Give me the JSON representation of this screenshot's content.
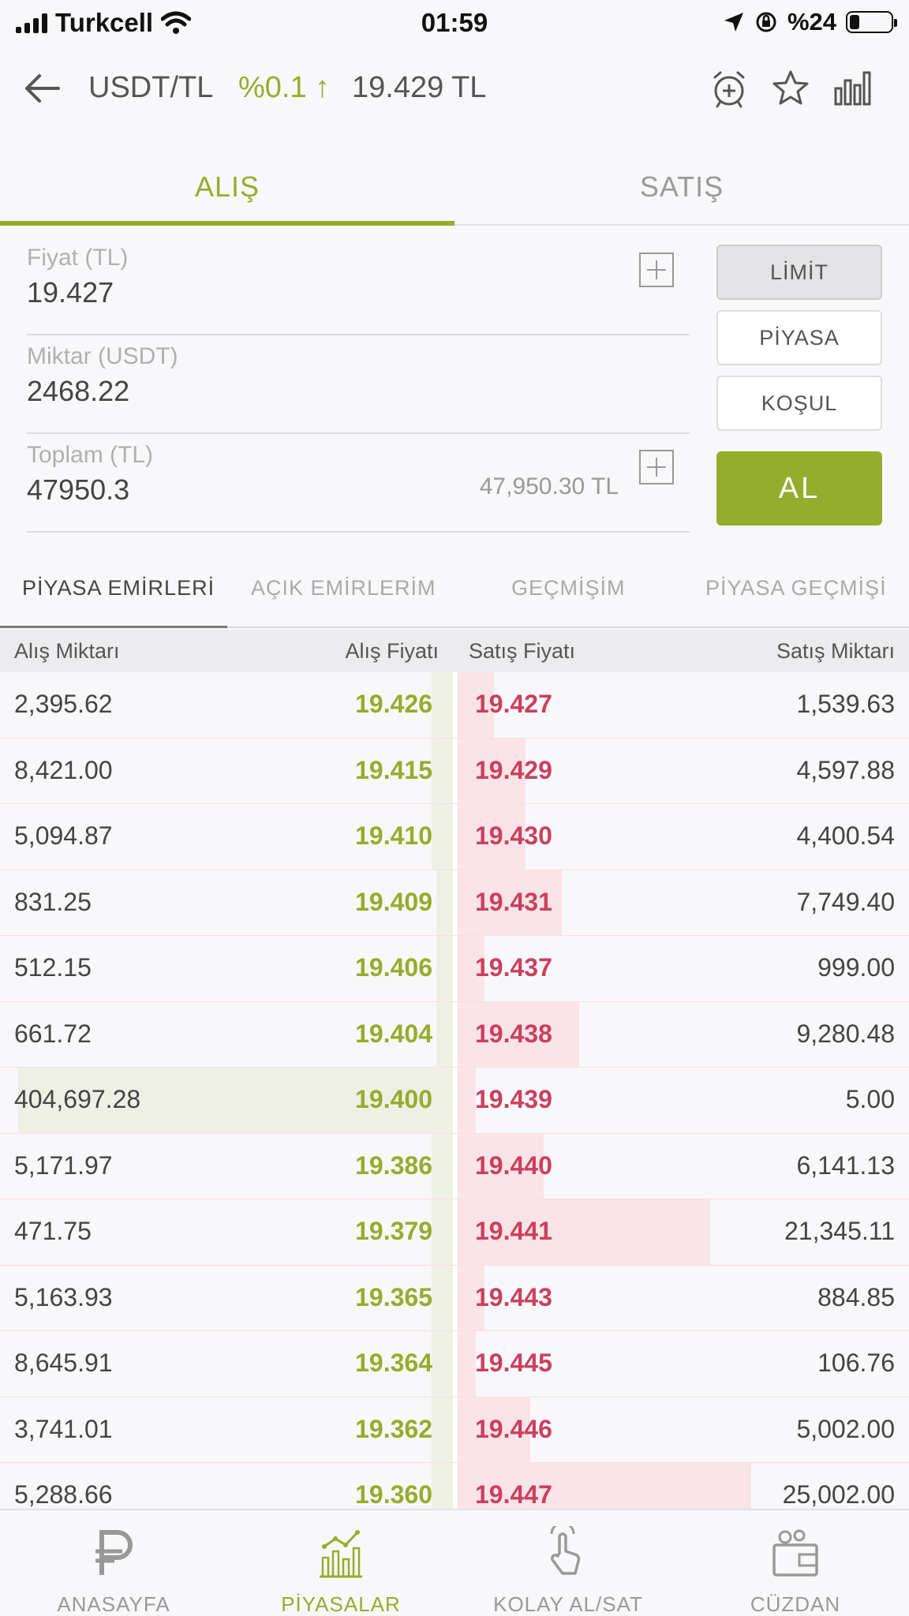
{
  "status_bar": {
    "carrier": "Turkcell",
    "time": "01:59",
    "battery_text": "%24"
  },
  "header": {
    "pair": "USDT/TL",
    "change": "%0.1 ↑",
    "price": "19.429 TL"
  },
  "tabs": [
    {
      "label": "ALIŞ",
      "active": true
    },
    {
      "label": "SATIŞ",
      "active": false
    }
  ],
  "form": {
    "price_label": "Fiyat (TL)",
    "price_value": "19.427",
    "amount_label": "Miktar (USDT)",
    "amount_value": "2468.22",
    "total_label": "Toplam (TL)",
    "total_value": "47950.3",
    "total_display": "47,950.30 TL"
  },
  "order_types": [
    "LİMİT",
    "PİYASA",
    "KOŞUL"
  ],
  "submit_label": "AL",
  "sub_tabs": [
    "PİYASA EMİRLERİ",
    "AÇIK EMİRLERİM",
    "GEÇMİŞİM",
    "PİYASA GEÇMİŞİ"
  ],
  "order_book": {
    "columns": [
      "Alış Miktarı",
      "Alış Fiyatı",
      "Satış Fiyatı",
      "Satış Miktarı"
    ],
    "rows": [
      {
        "buy_qty": "2,395.62",
        "buy_price": "19.426",
        "sell_price": "19.427",
        "sell_qty": "1,539.63",
        "buy_depth": 0.05,
        "sell_depth": 0.08
      },
      {
        "buy_qty": "8,421.00",
        "buy_price": "19.415",
        "sell_price": "19.429",
        "sell_qty": "4,597.88",
        "buy_depth": 0.05,
        "sell_depth": 0.15
      },
      {
        "buy_qty": "5,094.87",
        "buy_price": "19.410",
        "sell_price": "19.430",
        "sell_qty": "4,400.54",
        "buy_depth": 0.05,
        "sell_depth": 0.15
      },
      {
        "buy_qty": "831.25",
        "buy_price": "19.409",
        "sell_price": "19.431",
        "sell_qty": "7,749.40",
        "buy_depth": 0.04,
        "sell_depth": 0.23
      },
      {
        "buy_qty": "512.15",
        "buy_price": "19.406",
        "sell_price": "19.437",
        "sell_qty": "999.00",
        "buy_depth": 0.04,
        "sell_depth": 0.06
      },
      {
        "buy_qty": "661.72",
        "buy_price": "19.404",
        "sell_price": "19.438",
        "sell_qty": "9,280.48",
        "buy_depth": 0.04,
        "sell_depth": 0.27
      },
      {
        "buy_qty": "404,697.28",
        "buy_price": "19.400",
        "sell_price": "19.439",
        "sell_qty": "5.00",
        "buy_depth": 0.96,
        "sell_depth": 0.04
      },
      {
        "buy_qty": "5,171.97",
        "buy_price": "19.386",
        "sell_price": "19.440",
        "sell_qty": "6,141.13",
        "buy_depth": 0.05,
        "sell_depth": 0.19
      },
      {
        "buy_qty": "471.75",
        "buy_price": "19.379",
        "sell_price": "19.441",
        "sell_qty": "21,345.11",
        "buy_depth": 0.05,
        "sell_depth": 0.56
      },
      {
        "buy_qty": "5,163.93",
        "buy_price": "19.365",
        "sell_price": "19.443",
        "sell_qty": "884.85",
        "buy_depth": 0.05,
        "sell_depth": 0.06
      },
      {
        "buy_qty": "8,645.91",
        "buy_price": "19.364",
        "sell_price": "19.445",
        "sell_qty": "106.76",
        "buy_depth": 0.05,
        "sell_depth": 0.04
      },
      {
        "buy_qty": "3,741.01",
        "buy_price": "19.362",
        "sell_price": "19.446",
        "sell_qty": "5,002.00",
        "buy_depth": 0.05,
        "sell_depth": 0.16
      },
      {
        "buy_qty": "5,288.66",
        "buy_price": "19.360",
        "sell_price": "19.447",
        "sell_qty": "25,002.00",
        "buy_depth": 0.05,
        "sell_depth": 0.65
      }
    ]
  },
  "bottom_nav": [
    {
      "label": "ANASAYFA",
      "icon": "home-p-icon",
      "active": false
    },
    {
      "label": "PİYASALAR",
      "icon": "markets-chart-icon",
      "active": true
    },
    {
      "label": "KOLAY AL/SAT",
      "icon": "hand-tap-icon",
      "active": false
    },
    {
      "label": "CÜZDAN",
      "icon": "wallet-icon",
      "active": false
    }
  ],
  "colors": {
    "accent_green": "#95ad2c",
    "sell_red": "#cc3f5e"
  }
}
